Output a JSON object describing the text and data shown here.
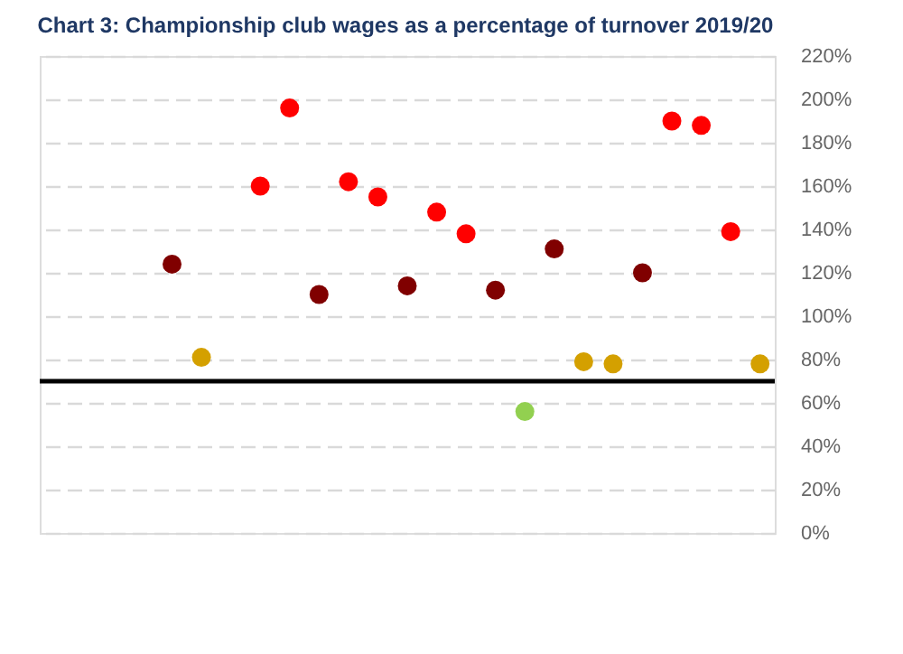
{
  "chart_data": {
    "type": "scatter",
    "title": "Chart 3: Championship club wages as a percentage of turnover 2019/20",
    "categories": [
      null,
      null,
      null,
      null,
      null,
      null,
      null,
      null,
      null,
      null,
      null,
      null,
      null,
      null,
      null,
      null,
      null,
      null,
      null,
      null,
      null,
      null,
      null,
      null,
      null
    ],
    "values": [
      null,
      null,
      null,
      null,
      124,
      81,
      null,
      160,
      196,
      110,
      162,
      155,
      114,
      148,
      138,
      112,
      56,
      131,
      79,
      78,
      120,
      190,
      188,
      139,
      78
    ],
    "colors": [
      null,
      null,
      null,
      null,
      "#800000",
      "#d4a000",
      null,
      "#ff0000",
      "#ff0000",
      "#800000",
      "#ff0000",
      "#ff0000",
      "#800000",
      "#ff0000",
      "#ff0000",
      "#800000",
      "#92d050",
      "#800000",
      "#d4a000",
      "#d4a000",
      "#800000",
      "#ff0000",
      "#ff0000",
      "#ff0000",
      "#d4a000"
    ],
    "ylim": [
      0,
      220
    ],
    "yticks": [
      {
        "value": 0,
        "label": "0%"
      },
      {
        "value": 20,
        "label": "20%"
      },
      {
        "value": 40,
        "label": "40%"
      },
      {
        "value": 60,
        "label": "60%"
      },
      {
        "value": 80,
        "label": "80%"
      },
      {
        "value": 100,
        "label": "100%"
      },
      {
        "value": 120,
        "label": "120%"
      },
      {
        "value": 140,
        "label": "140%"
      },
      {
        "value": 160,
        "label": "160%"
      },
      {
        "value": 180,
        "label": "180%"
      },
      {
        "value": 200,
        "label": "200%"
      },
      {
        "value": 220,
        "label": "220%"
      }
    ],
    "ref_lines": [
      {
        "axis": "y",
        "value": 70,
        "color": "#000000",
        "line_style": "solid"
      }
    ],
    "grid": "y",
    "tick_labels": "y",
    "marker": "circle"
  }
}
